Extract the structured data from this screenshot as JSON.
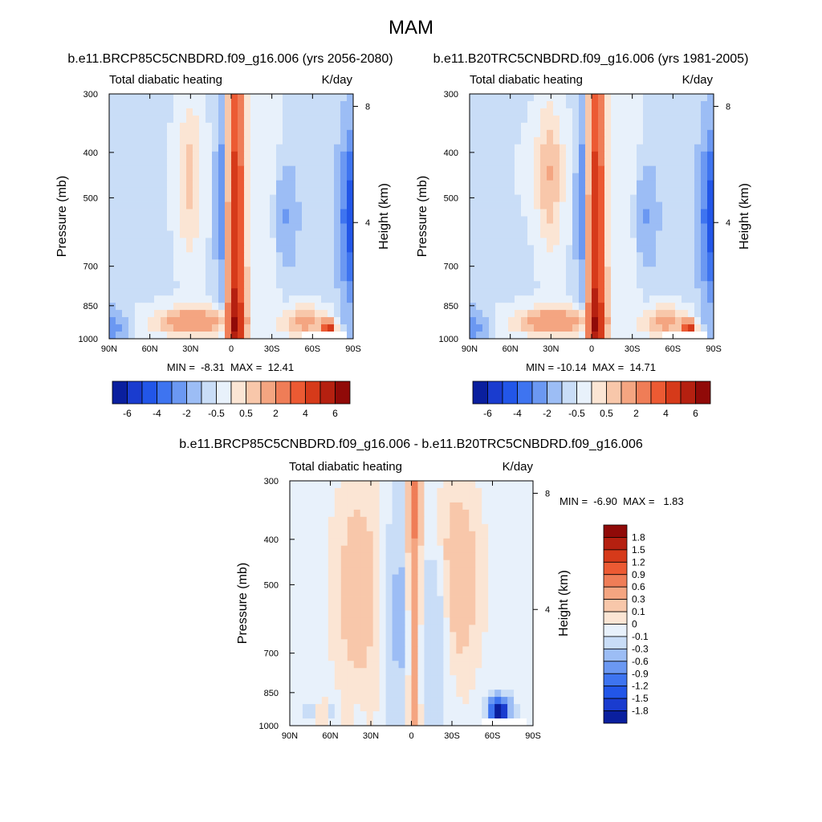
{
  "title": "MAM",
  "panels": [
    {
      "case_title": "b.e11.BRCP85C5CNBDRD.f09_g16.006 (yrs 2056-2080)",
      "left_label": "Total diabatic heating",
      "right_label": "K/day",
      "stats": "MIN =  -8.31  MAX =  12.41"
    },
    {
      "case_title": "b.e11.B20TRC5CNBDRD.f09_g16.006 (yrs 1981-2005)",
      "left_label": "Total diabatic heating",
      "right_label": "K/day",
      "stats": "MIN = -10.14  MAX =  14.71"
    },
    {
      "case_title": "b.e11.BRCP85C5CNBDRD.f09_g16.006 - b.e11.B20TRC5CNBDRD.f09_g16.006",
      "left_label": "Total diabatic heating",
      "right_label": "K/day",
      "stats": "MIN =  -6.90  MAX =   1.83"
    }
  ],
  "chart_data": [
    {
      "type": "heatmap",
      "title": "Total diabatic heating",
      "units": "K/day",
      "xlabel": "",
      "ylabel": "Pressure (mb)",
      "ylabel_right": "Height (km)",
      "x_ticks": [
        "90N",
        "60N",
        "30N",
        "0",
        "30S",
        "60S",
        "90S"
      ],
      "x_values": [
        90,
        60,
        30,
        0,
        -30,
        -60,
        -90
      ],
      "y_ticks": [
        300,
        400,
        500,
        700,
        850,
        1000
      ],
      "y_right_ticks": [
        8,
        4
      ],
      "ylim": [
        1000,
        300
      ],
      "min": -8.31,
      "max": 12.41,
      "colorbar_labels": [
        "-6",
        "-4",
        "-2",
        "-0.5",
        "0.5",
        "2",
        "4",
        "6"
      ]
    },
    {
      "type": "heatmap",
      "title": "Total diabatic heating",
      "units": "K/day",
      "xlabel": "",
      "ylabel": "Pressure (mb)",
      "ylabel_right": "Height (km)",
      "x_ticks": [
        "90N",
        "60N",
        "30N",
        "0",
        "30S",
        "60S",
        "90S"
      ],
      "x_values": [
        90,
        60,
        30,
        0,
        -30,
        -60,
        -90
      ],
      "y_ticks": [
        300,
        400,
        500,
        700,
        850,
        1000
      ],
      "y_right_ticks": [
        8,
        4
      ],
      "ylim": [
        1000,
        300
      ],
      "min": -10.14,
      "max": 14.71,
      "colorbar_labels": [
        "-6",
        "-4",
        "-2",
        "-0.5",
        "0.5",
        "2",
        "4",
        "6"
      ]
    },
    {
      "type": "heatmap",
      "title": "Total diabatic heating",
      "units": "K/day",
      "xlabel": "",
      "ylabel": "Pressure (mb)",
      "ylabel_right": "Height (km)",
      "x_ticks": [
        "90N",
        "60N",
        "30N",
        "0",
        "30S",
        "60S",
        "90S"
      ],
      "x_values": [
        90,
        60,
        30,
        0,
        -30,
        -60,
        -90
      ],
      "y_ticks": [
        300,
        400,
        500,
        700,
        850,
        1000
      ],
      "y_right_ticks": [
        8,
        4
      ],
      "ylim": [
        1000,
        300
      ],
      "min": -6.9,
      "max": 1.83,
      "colorbar_labels": [
        "1.8",
        "1.5",
        "1.2",
        "0.9",
        "0.6",
        "0.3",
        "0.1",
        "0",
        "-0.1",
        "-0.3",
        "-0.6",
        "-0.9",
        "-1.2",
        "-1.5",
        "-1.8"
      ]
    }
  ],
  "colors": {
    "palette": [
      "#08076e",
      "#0a1f9e",
      "#1a3ccf",
      "#2256e8",
      "#3e74f0",
      "#6b98f2",
      "#9cbdf5",
      "#c9ddf7",
      "#e8f1fb",
      "#fbe5d4",
      "#f8c7aa",
      "#f4a581",
      "#ef7d57",
      "#ec5a33",
      "#d63a1a",
      "#b52010",
      "#900a08",
      "#6d0404"
    ],
    "axis": "#000000",
    "missing": "#ffffff"
  }
}
